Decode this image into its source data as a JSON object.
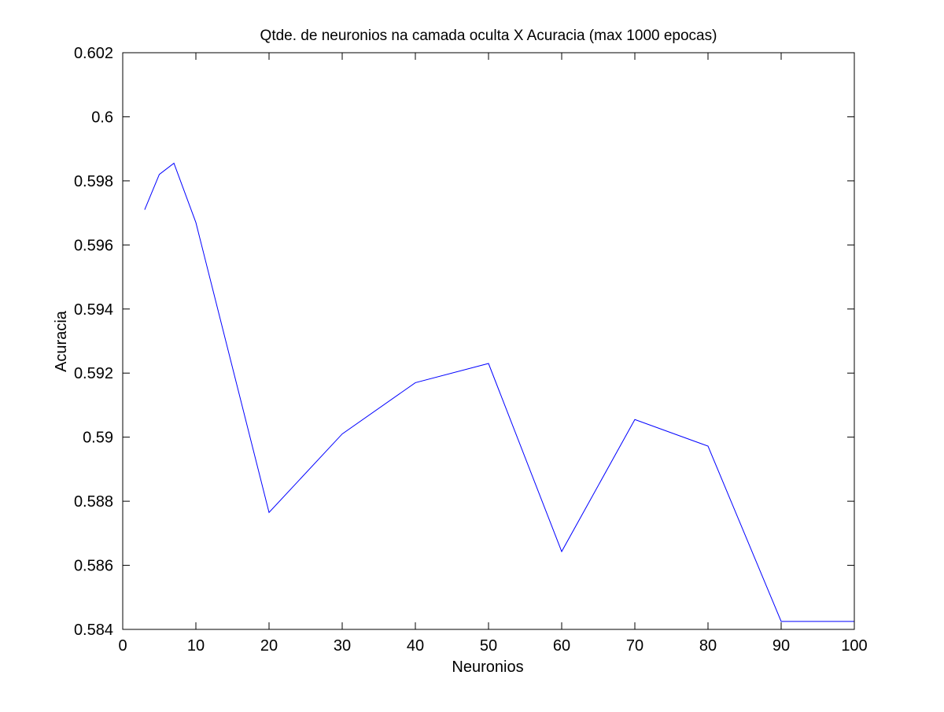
{
  "chart_data": {
    "type": "line",
    "title": "Qtde. de neuronios na camada oculta X Acuracia (max 1000 epocas)",
    "xlabel": "Neuronios",
    "ylabel": "Acuracia",
    "xlim": [
      0,
      100
    ],
    "ylim": [
      0.584,
      0.602
    ],
    "xticks": [
      0,
      10,
      20,
      30,
      40,
      50,
      60,
      70,
      80,
      90,
      100
    ],
    "xtick_labels": [
      "0",
      "10",
      "20",
      "30",
      "40",
      "50",
      "60",
      "70",
      "80",
      "90",
      "100"
    ],
    "yticks": [
      0.584,
      0.586,
      0.588,
      0.59,
      0.592,
      0.594,
      0.596,
      0.598,
      0.6,
      0.602
    ],
    "ytick_labels": [
      "0.584",
      "0.586",
      "0.588",
      "0.59",
      "0.592",
      "0.594",
      "0.596",
      "0.598",
      "0.6",
      "0.602"
    ],
    "grid": false,
    "series": [
      {
        "color": "#0000ff",
        "x": [
          3,
          5,
          7,
          10,
          20,
          30,
          40,
          50,
          60,
          70,
          80,
          90,
          100
        ],
        "y": [
          0.5971,
          0.5982,
          0.59855,
          0.5967,
          0.58765,
          0.5901,
          0.5917,
          0.5923,
          0.58643,
          0.59055,
          0.58972,
          0.58425,
          0.58425
        ]
      }
    ]
  }
}
